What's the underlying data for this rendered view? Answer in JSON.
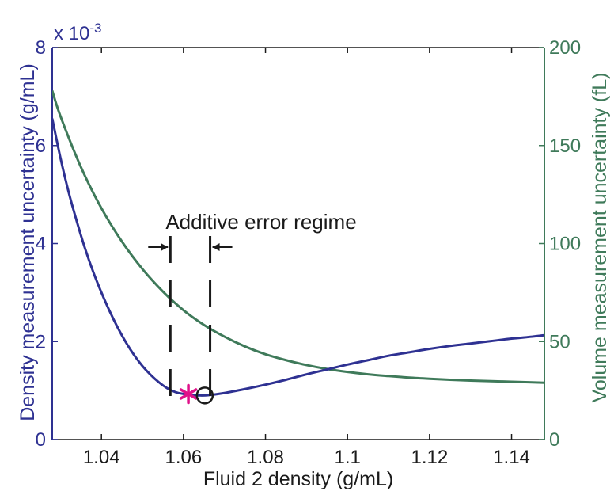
{
  "chart_data": {
    "type": "line",
    "xlabel": "Fluid 2 density (g/mL)",
    "ylabel_left": "Density measurement uncertainty (g/mL)",
    "ylabel_right": "Volume measurement uncertainty (fL)",
    "left_multiplier": "x 10",
    "left_multiplier_exp": "-3",
    "xlim": [
      1.028,
      1.148
    ],
    "ylim_left": [
      0,
      8
    ],
    "ylim_right": [
      0,
      200
    ],
    "x_ticks": [
      1.04,
      1.06,
      1.08,
      1.1,
      1.12,
      1.14
    ],
    "x_tick_labels": [
      "1.04",
      "1.06",
      "1.08",
      "1.1",
      "1.12",
      "1.14"
    ],
    "y_left_ticks": [
      0,
      2,
      4,
      6,
      8
    ],
    "y_left_tick_labels": [
      "0",
      "2",
      "4",
      "6",
      "8"
    ],
    "y_right_ticks": [
      0,
      50,
      100,
      150,
      200
    ],
    "y_right_tick_labels": [
      "0",
      "50",
      "100",
      "150",
      "200"
    ],
    "grid": false,
    "colors": {
      "left": "#2e3192",
      "right": "#3f7a5a",
      "star": "#e0118a",
      "text": "#1a1a1a"
    },
    "series": [
      {
        "axis": "left",
        "x": [
          1.028,
          1.03,
          1.032,
          1.034,
          1.036,
          1.038,
          1.04,
          1.042,
          1.044,
          1.046,
          1.048,
          1.05,
          1.052,
          1.054,
          1.056,
          1.058,
          1.06,
          1.062,
          1.064,
          1.066,
          1.07,
          1.075,
          1.08,
          1.085,
          1.09,
          1.095,
          1.1,
          1.105,
          1.11,
          1.115,
          1.12,
          1.125,
          1.13,
          1.135,
          1.14,
          1.145,
          1.148
        ],
        "y": [
          6.55,
          5.75,
          5.05,
          4.45,
          3.9,
          3.42,
          3.0,
          2.62,
          2.28,
          1.98,
          1.72,
          1.5,
          1.32,
          1.17,
          1.05,
          0.97,
          0.93,
          0.905,
          0.9,
          0.905,
          0.95,
          1.03,
          1.12,
          1.22,
          1.33,
          1.43,
          1.53,
          1.62,
          1.71,
          1.78,
          1.85,
          1.91,
          1.96,
          2.01,
          2.06,
          2.1,
          2.13
        ]
      },
      {
        "axis": "right",
        "x": [
          1.028,
          1.03,
          1.035,
          1.04,
          1.045,
          1.05,
          1.055,
          1.06,
          1.065,
          1.07,
          1.075,
          1.08,
          1.085,
          1.09,
          1.095,
          1.1,
          1.105,
          1.11,
          1.115,
          1.12,
          1.125,
          1.13,
          1.135,
          1.14,
          1.145,
          1.148
        ],
        "y": [
          178,
          165,
          139,
          118,
          101,
          87,
          75.5,
          66,
          58.5,
          52.5,
          47.5,
          43.5,
          40.5,
          38,
          36,
          34.5,
          33.3,
          32.4,
          31.6,
          31,
          30.5,
          30.1,
          29.8,
          29.5,
          29.2,
          29
        ]
      }
    ],
    "markers": [
      {
        "shape": "asterisk",
        "x": 1.0612,
        "y": 0.93,
        "axis": "left"
      },
      {
        "shape": "circle",
        "x": 1.0652,
        "y": 0.9,
        "axis": "left"
      }
    ],
    "regime": {
      "label": "Additive error regime",
      "x_start": 1.0568,
      "x_end": 1.0665
    }
  }
}
